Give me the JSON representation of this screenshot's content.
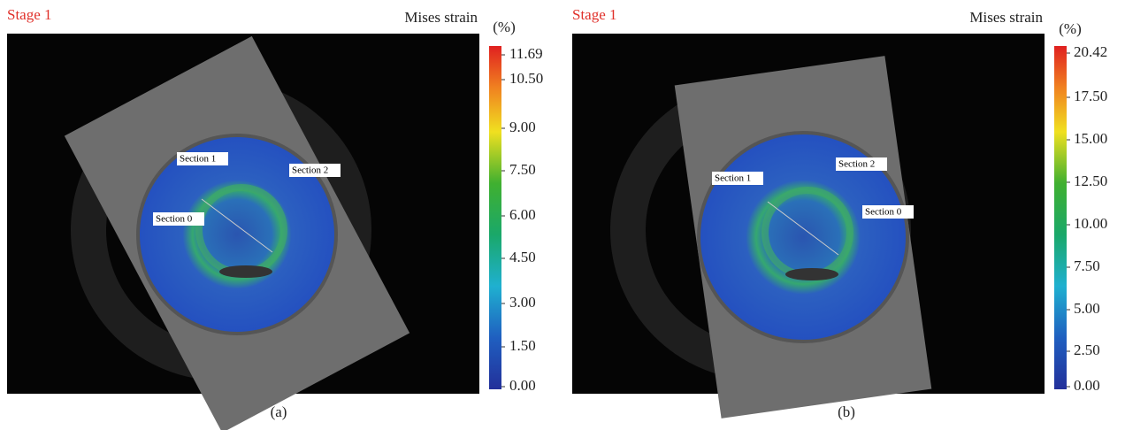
{
  "panels": [
    {
      "stage": "Stage 1",
      "quantity": "Mises strain",
      "unit": "(%)",
      "scale_labels": [
        "11.69",
        "10.50",
        "9.00",
        "7.50",
        "6.00",
        "4.50",
        "3.00",
        "1.50",
        "0.00"
      ],
      "sections": [
        "Section 1",
        "Section 2",
        "Section 0"
      ],
      "caption": "(a)"
    },
    {
      "stage": "Stage 1",
      "quantity": "Mises strain",
      "unit": "(%)",
      "scale_labels": [
        "20.42",
        "17.50",
        "15.00",
        "12.50",
        "10.00",
        "7.50",
        "5.00",
        "2.50",
        "0.00"
      ],
      "sections": [
        "Section 1",
        "Section 2",
        "Section 0"
      ],
      "caption": "(b)"
    }
  ]
}
